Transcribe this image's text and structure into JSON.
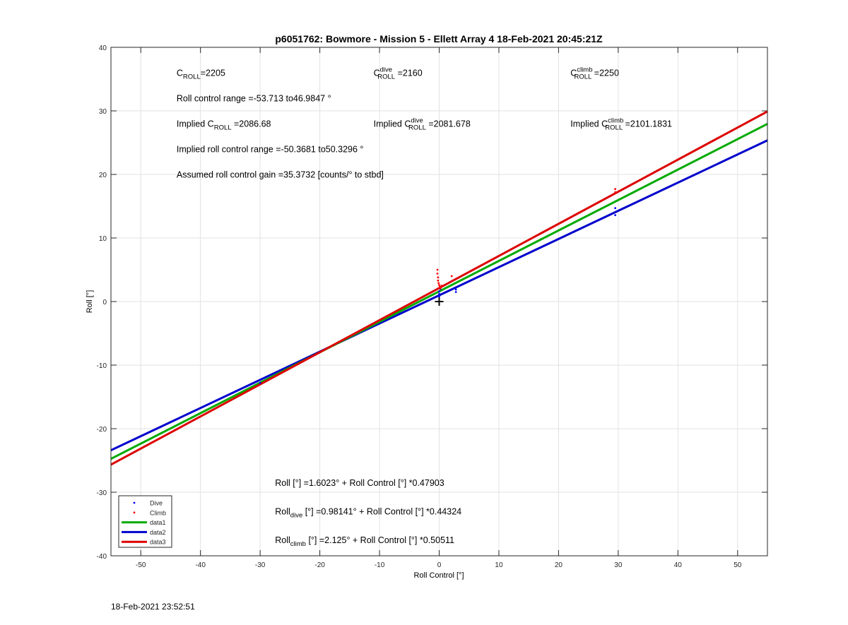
{
  "chart_data": {
    "type": "scatter",
    "title": "p6051762: Bowmore - Mission 5 - Ellett Array 4 18-Feb-2021 20:45:21Z",
    "xlabel": "Roll Control [°]",
    "ylabel": "Roll [°]",
    "xlim": [
      -55,
      55
    ],
    "ylim": [
      -40,
      40
    ],
    "xticks": [
      -50,
      -40,
      -30,
      -20,
      -10,
      0,
      10,
      20,
      30,
      40,
      50
    ],
    "yticks": [
      -40,
      -30,
      -20,
      -10,
      0,
      10,
      20,
      30,
      40
    ],
    "grid": true,
    "legend_position": "bottom-left",
    "series": [
      {
        "name": "Dive",
        "kind": "points",
        "color": "#0000ff",
        "points": [
          [
            0,
            1.2
          ],
          [
            0,
            0.8
          ],
          [
            0,
            1.6
          ],
          [
            0.2,
            2.0
          ],
          [
            2.8,
            1.5
          ],
          [
            2.8,
            1.9
          ],
          [
            29.5,
            13.6
          ],
          [
            29.5,
            14.7
          ],
          [
            -30,
            -12.8
          ]
        ]
      },
      {
        "name": "Climb",
        "kind": "points",
        "color": "#ff0000",
        "points": [
          [
            -0.3,
            5.0
          ],
          [
            -0.3,
            4.4
          ],
          [
            -0.2,
            3.8
          ],
          [
            -0.2,
            3.3
          ],
          [
            -0.1,
            2.9
          ],
          [
            0,
            2.6
          ],
          [
            0.1,
            2.3
          ],
          [
            0.2,
            2.1
          ],
          [
            0.4,
            2.5
          ],
          [
            2.1,
            4.0
          ],
          [
            29.5,
            17.2
          ],
          [
            29.5,
            17.7
          ]
        ]
      },
      {
        "name": "data1",
        "kind": "line",
        "color": "#00aa00",
        "intercept": 1.6023,
        "slope": 0.47903
      },
      {
        "name": "data2",
        "kind": "line",
        "color": "#0000cc",
        "intercept": 0.98141,
        "slope": 0.44324
      },
      {
        "name": "data3",
        "kind": "line",
        "color": "#dd0000",
        "intercept": 2.125,
        "slope": 0.50511
      }
    ],
    "marker": {
      "x": 0,
      "y": 0,
      "symbol": "+"
    },
    "annotations": [
      {
        "x": -44,
        "y": 35.5,
        "base": "C",
        "sub": "ROLL",
        "sup": "",
        "text": "=2205"
      },
      {
        "x": -11,
        "y": 35.5,
        "base": "C",
        "sub": "ROLL",
        "sup": "dive",
        "text": " =2160"
      },
      {
        "x": 22,
        "y": 35.5,
        "base": "C",
        "sub": "ROLL",
        "sup": "climb",
        "text": " =2250"
      },
      {
        "x": -44,
        "y": 31.5,
        "text": "Roll control range =-53.713 to46.9847 °"
      },
      {
        "x": -44,
        "y": 27.5,
        "prefix": "Implied ",
        "base": "C",
        "sub": "ROLL",
        "sup": "",
        "text": " =2086.68"
      },
      {
        "x": -11,
        "y": 27.5,
        "prefix": "Implied ",
        "base": "C",
        "sub": "ROLL",
        "sup": "dive",
        "text": " =2081.678"
      },
      {
        "x": 22,
        "y": 27.5,
        "prefix": "Implied ",
        "base": "C",
        "sub": "ROLL",
        "sup": "climb",
        "text": " =2101.1831"
      },
      {
        "x": -44,
        "y": 23.5,
        "text": "Implied roll control range =-50.3681 to50.3296 °"
      },
      {
        "x": -44,
        "y": 19.5,
        "text": "Assumed roll control gain =35.3732 [counts/° to stbd]"
      },
      {
        "x": -27.5,
        "y": -29,
        "text": "Roll [°] =1.6023° + Roll Control [°] *0.47903"
      },
      {
        "x": -27.5,
        "y": -33.5,
        "base": "Roll",
        "sub": "dive",
        "sup": "",
        "text": " [°] =0.98141° + Roll Control [°] *0.44324"
      },
      {
        "x": -27.5,
        "y": -38,
        "base": "Roll",
        "sub": "climb",
        "sup": "",
        "text": " [°] =2.125° + Roll Control [°] *0.50511"
      }
    ]
  },
  "footer": {
    "timestamp": "18-Feb-2021 23:52:51"
  }
}
